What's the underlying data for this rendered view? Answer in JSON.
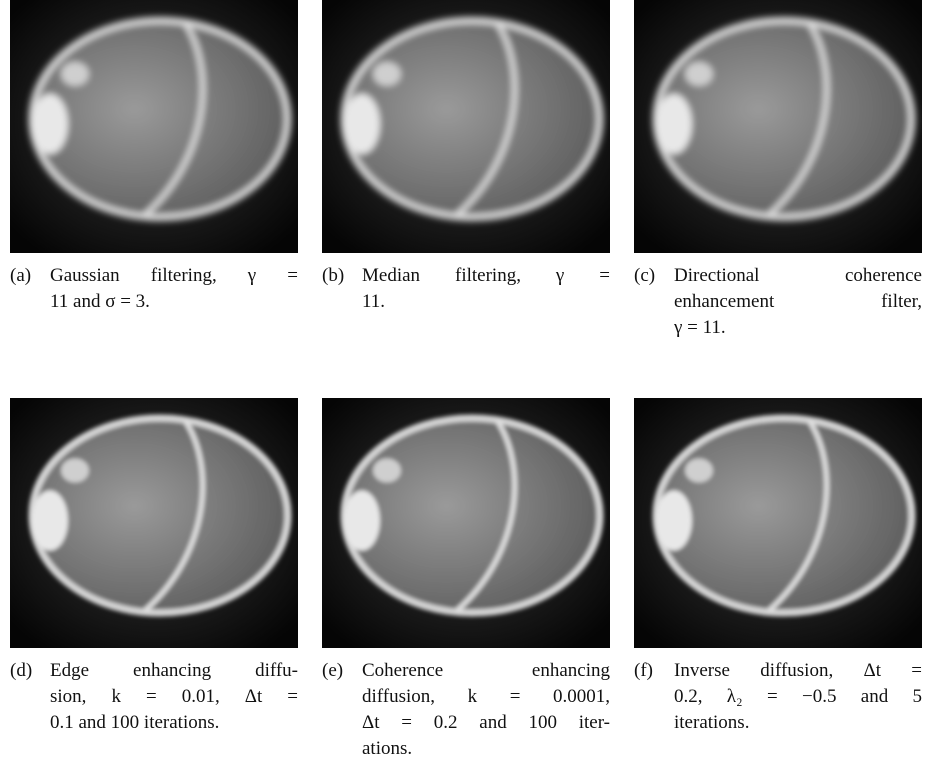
{
  "panels": [
    {
      "label": "(a)",
      "caption": [
        "Gaussian filtering, γ =",
        "11 and σ = 3."
      ]
    },
    {
      "label": "(b)",
      "caption": [
        "Median filtering, γ =",
        "11."
      ]
    },
    {
      "label": "(c)",
      "caption": [
        "Directional coherence",
        "enhancement filter,",
        "γ = 11."
      ]
    },
    {
      "label": "(d)",
      "caption": [
        "Edge enhancing diffu-",
        "sion, k = 0.01, Δt =",
        "0.1 and 100 iterations."
      ]
    },
    {
      "label": "(e)",
      "caption": [
        "Coherence enhancing",
        "diffusion, k = 0.0001,",
        "Δt = 0.2 and 100 iter-",
        "ations."
      ]
    },
    {
      "label": "(f)",
      "caption": [
        "Inverse diffusion, Δt =",
        "0.2, λ₂ = −0.5 and 5",
        "iterations."
      ]
    }
  ]
}
